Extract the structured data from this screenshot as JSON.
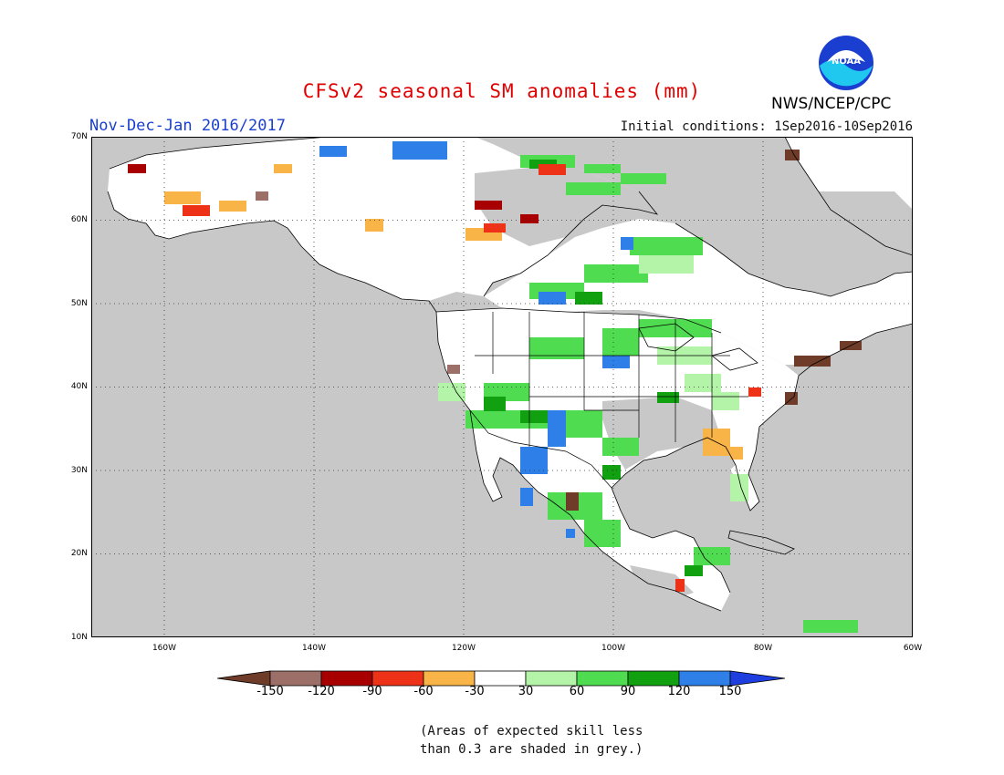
{
  "header": {
    "title": "CFSv2 seasonal SM anomalies (mm)",
    "period": "Nov-Dec-Jan 2016/2017",
    "initial_conditions": "Initial conditions: 1Sep2016-10Sep2016",
    "agency": "NWS/NCEP/CPC"
  },
  "logo": {
    "text": "NOAA"
  },
  "axes": {
    "lat_labels": [
      "70N",
      "60N",
      "50N",
      "40N",
      "30N",
      "20N",
      "10N"
    ],
    "lon_labels": [
      "160W",
      "140W",
      "120W",
      "100W",
      "80W",
      "60W"
    ]
  },
  "colorbar": {
    "labels": [
      "-150",
      "-120",
      "-90",
      "-60",
      "-30",
      "30",
      "60",
      "90",
      "120",
      "150"
    ],
    "colors": [
      "#6e3c28",
      "#9c7068",
      "#a80000",
      "#ee3218",
      "#f8b446",
      "#ffffff",
      "#b4f4a8",
      "#50dc50",
      "#10a010",
      "#2e80e8",
      "#1e3ee0"
    ]
  },
  "map_colors": {
    "ocean": "#c8c8c8",
    "land": "#ffffff",
    "coastline": "#000000"
  },
  "footnote": {
    "line1": "(Areas of expected skill less",
    "line2": "than 0.3 are shaded in grey.)"
  }
}
